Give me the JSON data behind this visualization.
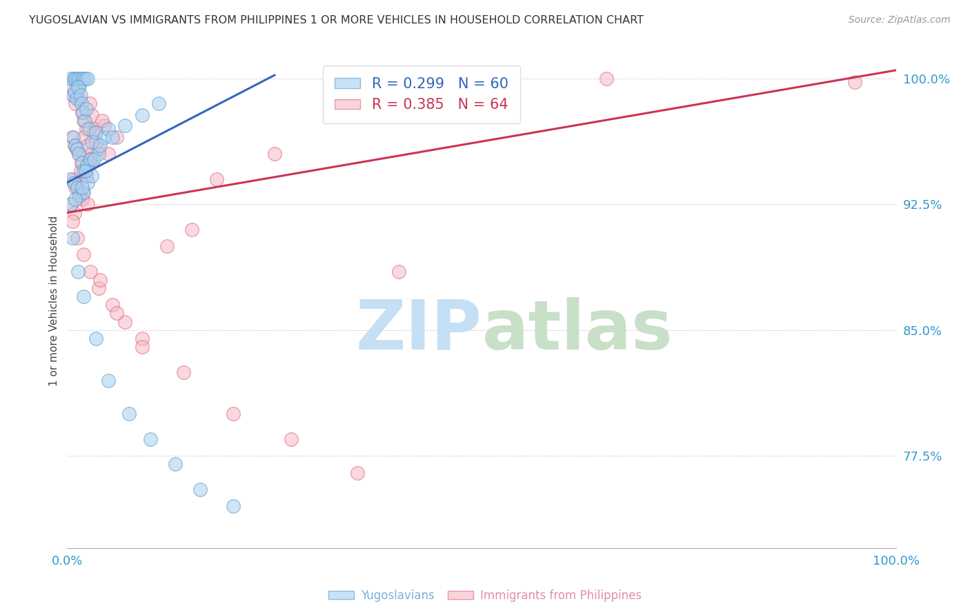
{
  "title": "YUGOSLAVIAN VS IMMIGRANTS FROM PHILIPPINES 1 OR MORE VEHICLES IN HOUSEHOLD CORRELATION CHART",
  "source": "Source: ZipAtlas.com",
  "ylabel": "1 or more Vehicles in Household",
  "xmin": 0.0,
  "xmax": 100.0,
  "ymin": 72.0,
  "ymax": 101.5,
  "yticks": [
    77.5,
    85.0,
    92.5,
    100.0
  ],
  "ytick_labels": [
    "77.5%",
    "85.0%",
    "92.5%",
    "100.0%"
  ],
  "legend_blue_r": "R = 0.299",
  "legend_blue_n": "N = 60",
  "legend_pink_r": "R = 0.385",
  "legend_pink_n": "N = 64",
  "blue_color": "#a8d0f0",
  "pink_color": "#f5b8c4",
  "blue_edge_color": "#5599cc",
  "pink_edge_color": "#e06080",
  "blue_line_color": "#3366bb",
  "pink_line_color": "#cc3355",
  "title_color": "#333333",
  "source_color": "#999999",
  "axis_label_color": "#3399cc",
  "watermark_zip_color": "#d0e8f8",
  "watermark_atlas_color": "#d8e8d8",
  "background_color": "#ffffff",
  "grid_color": "#cccccc",
  "blue_trendline_x0": 0.0,
  "blue_trendline_y0": 93.8,
  "blue_trendline_x1": 25.0,
  "blue_trendline_y1": 100.2,
  "pink_trendline_x0": 0.0,
  "pink_trendline_y0": 92.0,
  "pink_trendline_x1": 100.0,
  "pink_trendline_y1": 100.5,
  "blue_scatter_x": [
    0.5,
    0.8,
    1.0,
    1.2,
    1.5,
    1.5,
    1.8,
    2.0,
    2.2,
    2.5,
    0.6,
    0.9,
    1.1,
    1.3,
    1.6,
    1.7,
    1.9,
    2.1,
    2.3,
    2.6,
    0.7,
    1.0,
    1.2,
    1.4,
    1.8,
    2.0,
    2.4,
    2.8,
    3.0,
    3.5,
    0.4,
    0.8,
    1.2,
    1.5,
    2.0,
    2.5,
    3.0,
    3.8,
    4.5,
    5.0,
    0.5,
    1.0,
    1.8,
    2.2,
    3.2,
    4.0,
    5.5,
    7.0,
    9.0,
    11.0,
    0.6,
    1.3,
    2.0,
    3.5,
    5.0,
    7.5,
    10.0,
    13.0,
    16.0,
    20.0
  ],
  "blue_scatter_y": [
    100.0,
    100.0,
    100.0,
    100.0,
    100.0,
    99.5,
    100.0,
    100.0,
    100.0,
    100.0,
    99.0,
    99.2,
    98.8,
    99.5,
    99.0,
    98.5,
    98.0,
    97.5,
    98.2,
    97.0,
    96.5,
    96.0,
    95.8,
    95.5,
    95.0,
    94.5,
    94.8,
    95.2,
    96.2,
    96.8,
    94.0,
    93.8,
    93.5,
    93.0,
    93.2,
    93.8,
    94.2,
    95.5,
    96.5,
    97.0,
    92.5,
    92.8,
    93.5,
    94.5,
    95.2,
    96.0,
    96.5,
    97.2,
    97.8,
    98.5,
    90.5,
    88.5,
    87.0,
    84.5,
    82.0,
    80.0,
    78.5,
    77.0,
    75.5,
    74.5
  ],
  "pink_scatter_x": [
    0.5,
    0.8,
    1.0,
    1.2,
    1.5,
    1.8,
    2.0,
    2.3,
    2.7,
    3.0,
    0.6,
    0.9,
    1.1,
    1.4,
    1.7,
    2.0,
    2.2,
    2.5,
    2.9,
    3.5,
    0.7,
    1.0,
    1.3,
    1.6,
    1.9,
    2.4,
    2.8,
    3.2,
    3.8,
    4.5,
    0.5,
    0.9,
    1.4,
    1.8,
    2.3,
    3.0,
    3.5,
    4.2,
    5.0,
    6.0,
    0.6,
    1.2,
    2.0,
    2.8,
    3.8,
    5.5,
    7.0,
    9.0,
    12.0,
    15.0,
    1.0,
    2.5,
    4.0,
    6.0,
    9.0,
    14.0,
    20.0,
    27.0,
    35.0,
    65.0,
    18.0,
    25.0,
    40.0,
    95.0
  ],
  "pink_scatter_y": [
    99.5,
    99.0,
    98.5,
    99.2,
    98.8,
    98.0,
    97.5,
    97.0,
    98.5,
    97.8,
    96.5,
    96.0,
    95.8,
    95.5,
    95.0,
    96.5,
    94.5,
    96.0,
    95.5,
    97.0,
    94.0,
    93.8,
    93.5,
    94.5,
    93.2,
    94.8,
    95.2,
    96.8,
    95.8,
    97.2,
    92.5,
    92.0,
    93.0,
    92.8,
    94.2,
    95.0,
    96.2,
    97.5,
    95.5,
    96.5,
    91.5,
    90.5,
    89.5,
    88.5,
    87.5,
    86.5,
    85.5,
    84.5,
    90.0,
    91.0,
    93.5,
    92.5,
    88.0,
    86.0,
    84.0,
    82.5,
    80.0,
    78.5,
    76.5,
    100.0,
    94.0,
    95.5,
    88.5,
    99.8
  ],
  "legend_label_blue": "Yugoslavians",
  "legend_label_pink": "Immigrants from Philippines"
}
